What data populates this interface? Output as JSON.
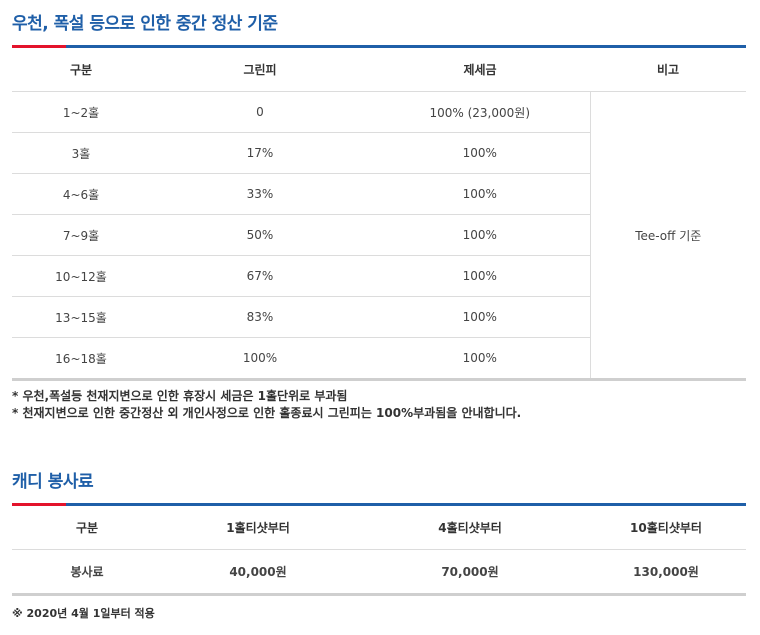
{
  "section1": {
    "title": "우천, 폭설 등으로 인한 중간 정산 기준",
    "headers": [
      "구분",
      "그린피",
      "제세금",
      "비고"
    ],
    "rows": [
      {
        "holes": "1~2홀",
        "green_fee": "0",
        "tax": "100% (23,000원)"
      },
      {
        "holes": "3홀",
        "green_fee": "17%",
        "tax": "100%"
      },
      {
        "holes": "4~6홀",
        "green_fee": "33%",
        "tax": "100%"
      },
      {
        "holes": "7~9홀",
        "green_fee": "50%",
        "tax": "100%"
      },
      {
        "holes": "10~12홀",
        "green_fee": "67%",
        "tax": "100%"
      },
      {
        "holes": "13~15홀",
        "green_fee": "83%",
        "tax": "100%"
      },
      {
        "holes": "16~18홀",
        "green_fee": "100%",
        "tax": "100%"
      }
    ],
    "remark": "Tee-off 기준",
    "notes": [
      "* 우천,폭설등 천재지변으로 인한 휴장시 세금은 1홀단위로 부과됨",
      "* 천재지변으로 인한 중간정산 외 개인사정으로 인한 홀종료시 그린피는 100%부과됨을 안내합니다."
    ]
  },
  "section2": {
    "title": "캐디 봉사료",
    "headers": [
      "구분",
      "1홀티샷부터",
      "4홀티샷부터",
      "10홀티샷부터"
    ],
    "row": [
      "봉사료",
      "40,000원",
      "70,000원",
      "130,000원"
    ],
    "footnote": "※ 2020년 4월 1일부터 적용"
  },
  "colors": {
    "title": "#1f5fa8",
    "accent": "#e3132b",
    "rule": "#1f5fa8"
  }
}
